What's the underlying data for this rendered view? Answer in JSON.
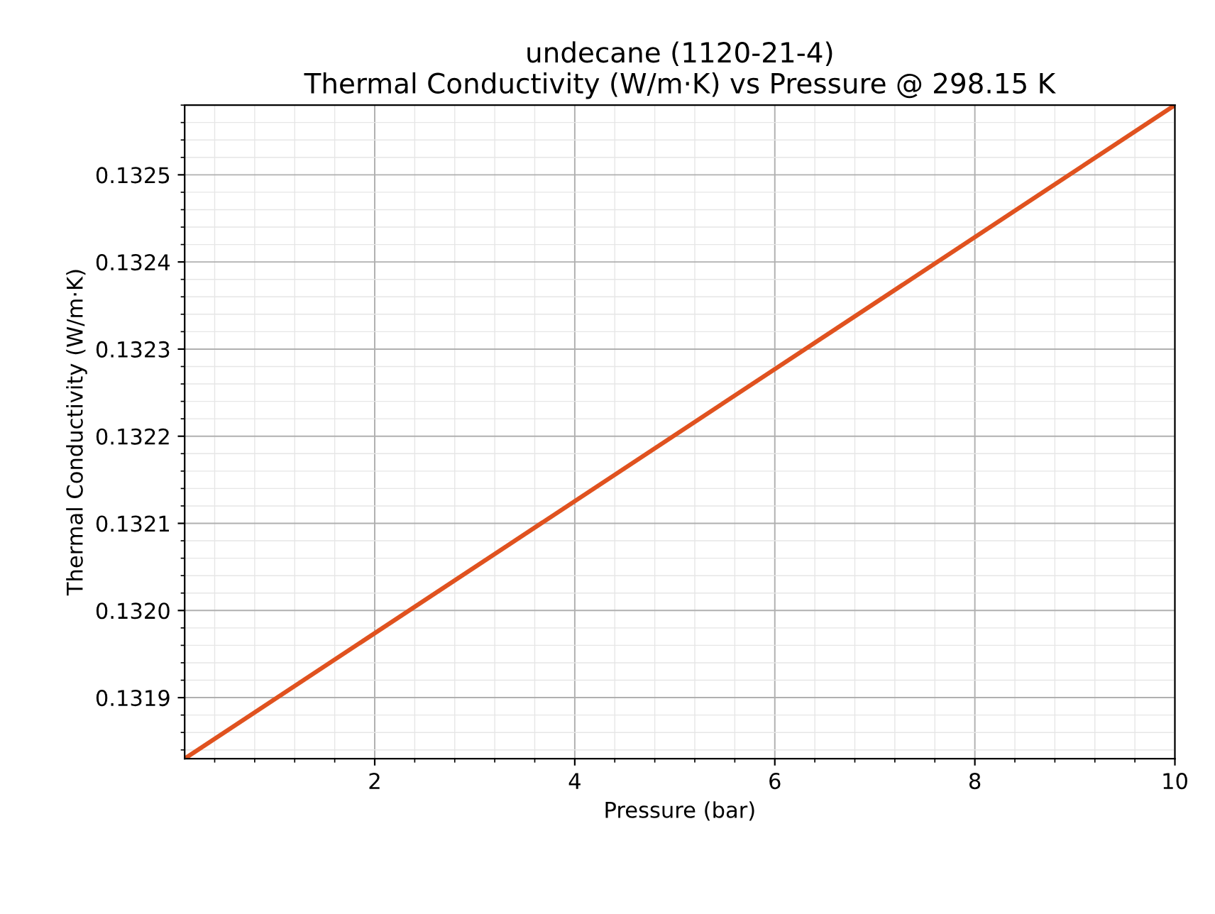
{
  "chart_data": {
    "type": "line",
    "title": "undecane (1120-21-4)\nThermal Conductivity (W/m·K) vs Pressure @ 298.15 K",
    "xlabel": "Pressure (bar)",
    "ylabel": "Thermal Conductivity (W/m·K)",
    "x": [
      0.1,
      10
    ],
    "series": [
      {
        "color": "#e0521f",
        "values": [
          0.13183,
          0.13258
        ]
      }
    ],
    "xlim": [
      0.1,
      10
    ],
    "ylim": [
      0.13183,
      0.13258
    ],
    "xticks": [
      2,
      4,
      6,
      8,
      10
    ],
    "yticks": [
      0.1319,
      {
        "value": 0.132,
        "label": "0.1320"
      },
      0.1321,
      0.1322,
      0.1323,
      0.1324,
      0.1325
    ],
    "grid": true,
    "marker": "none",
    "line_style": "solid",
    "legend": false
  }
}
